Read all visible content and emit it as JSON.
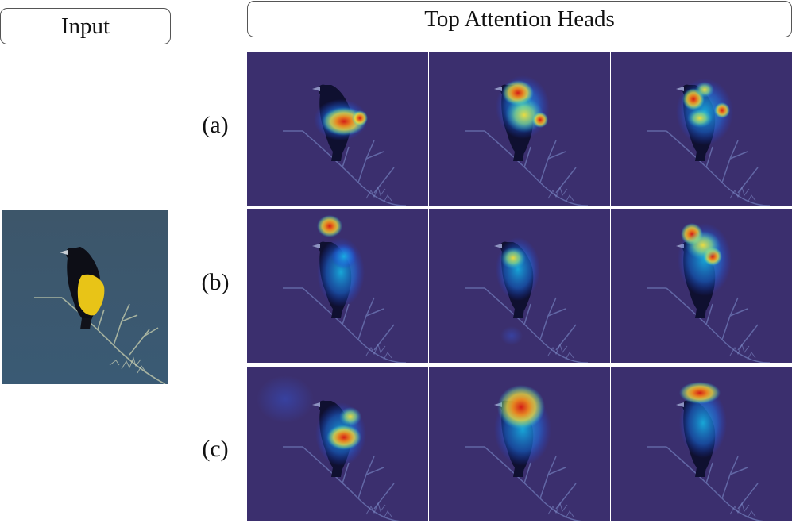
{
  "headers": {
    "input": "Input",
    "heads": "Top Attention Heads"
  },
  "rows": [
    {
      "label": "(a)"
    },
    {
      "label": "(b)"
    },
    {
      "label": "(c)"
    }
  ],
  "colors": {
    "photo_sky": "#3f5a6e",
    "overlay_background": "#3b2f6e",
    "bird_black": "#0d0e16",
    "bird_yellow": "#e8c417",
    "heat_scale": [
      "#1f3fd8",
      "#19b7e8",
      "#8be08a",
      "#f4e03a",
      "#f08a1c",
      "#d41c16"
    ]
  }
}
